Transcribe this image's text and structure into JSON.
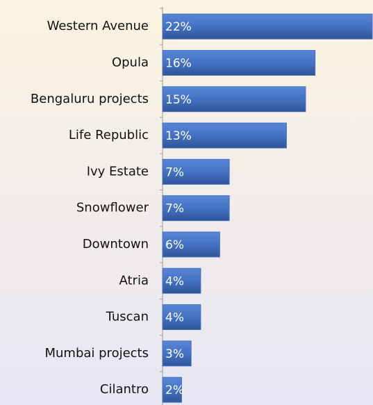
{
  "chart_data": {
    "type": "bar",
    "orientation": "horizontal",
    "categories": [
      "Western Avenue",
      "Opula",
      "Bengaluru projects",
      "Life Republic",
      "Ivy Estate",
      "Snowflower",
      "Downtown",
      "Atria",
      "Tuscan",
      "Mumbai projects",
      "Cilantro"
    ],
    "values": [
      22,
      16,
      15,
      13,
      7,
      7,
      6,
      4,
      4,
      3,
      2
    ],
    "value_labels": [
      "22%",
      "16%",
      "15%",
      "13%",
      "7%",
      "7%",
      "6%",
      "4%",
      "4%",
      "3%",
      "2%"
    ],
    "color": "#4472c4"
  }
}
